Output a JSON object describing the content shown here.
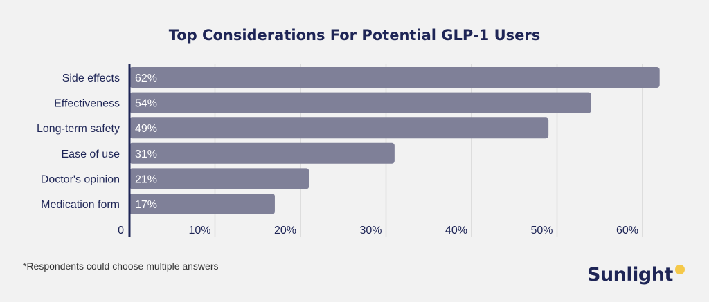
{
  "colors": {
    "background": "#f2f2f2",
    "bar": "#7f8098",
    "text": "#1e2556",
    "grid": "#d6d6d6",
    "axis": "#1e2556",
    "brand_dot": "#f5c94a"
  },
  "footnote": "*Respondents could choose multiple answers",
  "brand": {
    "name": "Sunlight"
  },
  "chart_data": {
    "type": "bar",
    "orientation": "horizontal",
    "title": "Top Considerations For Potential GLP-1 Users",
    "xlabel": "",
    "ylabel": "",
    "categories": [
      "Side effects",
      "Effectiveness",
      "Long-term safety",
      "Ease of use",
      "Doctor's opinion",
      "Medication form"
    ],
    "values": [
      62,
      54,
      49,
      31,
      21,
      17
    ],
    "value_labels": [
      "62%",
      "54%",
      "49%",
      "31%",
      "21%",
      "17%"
    ],
    "xlim": [
      0,
      60
    ],
    "x_ticks": [
      0,
      10,
      20,
      30,
      40,
      50,
      60
    ],
    "x_tick_labels": [
      "0",
      "10%",
      "20%",
      "30%",
      "40%",
      "50%",
      "60%"
    ],
    "grid": "vertical",
    "legend": "none"
  }
}
